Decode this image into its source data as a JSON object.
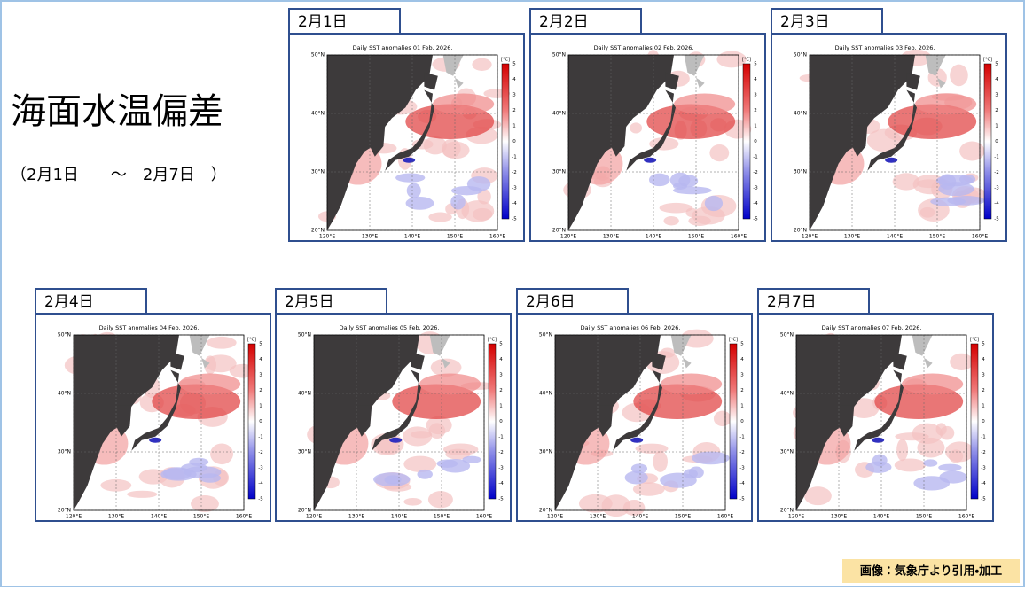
{
  "header": {
    "title": "海面水温偏差",
    "subtitle": "（2月1日　　～　2月7日　）"
  },
  "panels": [
    {
      "label": "2月1日",
      "map_title": "Daily SST anomalies 01 Feb. 2026."
    },
    {
      "label": "2月2日",
      "map_title": "Daily SST anomalies 02 Feb. 2026."
    },
    {
      "label": "2月3日",
      "map_title": "Daily SST anomalies 03 Feb. 2026."
    },
    {
      "label": "2月4日",
      "map_title": "Daily SST anomalies 04 Feb. 2026."
    },
    {
      "label": "2月5日",
      "map_title": "Daily SST anomalies 05 Feb. 2026."
    },
    {
      "label": "2月6日",
      "map_title": "Daily SST anomalies 06 Feb. 2026."
    },
    {
      "label": "2月7日",
      "map_title": "Daily SST anomalies 07 Feb. 2026."
    }
  ],
  "map_axes": {
    "lat_labels": [
      "50°N",
      "40°N",
      "30°N",
      "20°N"
    ],
    "lon_labels": [
      "120°E",
      "130°E",
      "140°E",
      "150°E",
      "160°E"
    ],
    "colorbar_unit": "[°C]",
    "colorbar_ticks": [
      5,
      4,
      3,
      2,
      1,
      0,
      -1,
      -2,
      -3,
      -4,
      -5
    ]
  },
  "credit": "画像：気象庁より引用・加工"
}
